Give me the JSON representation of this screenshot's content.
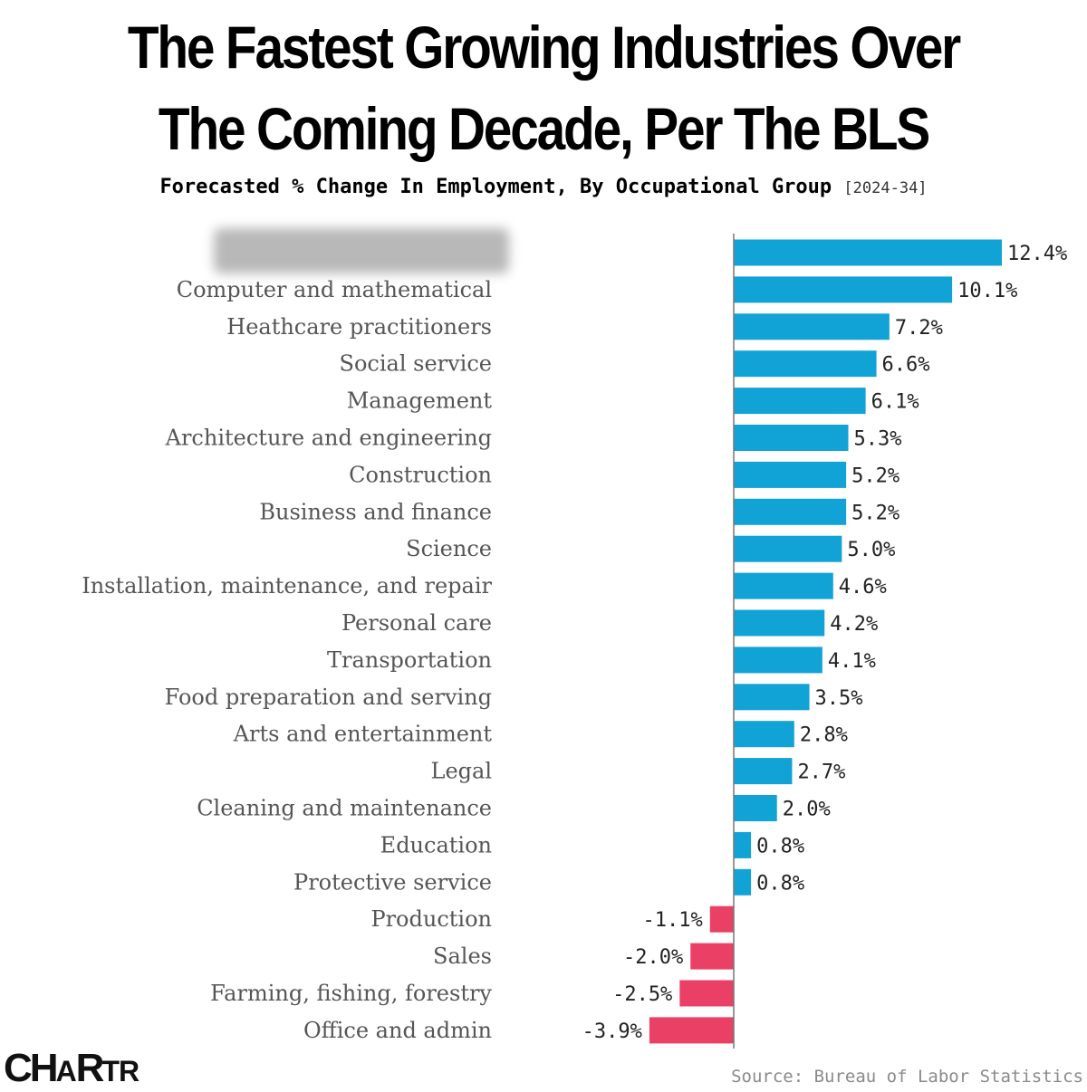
{
  "header": {
    "title_line_1": "The Fastest Growing Industries Over",
    "title_line_2": "The Coming Decade, Per The BLS",
    "subtitle": "Forecasted % Change In Employment, By Occupational Group",
    "subtitle_years": "[2024-34]"
  },
  "footer": {
    "logo_big_1": "CH",
    "logo_small_1": "A",
    "logo_big_2": "R",
    "logo_small_2": "TR",
    "source": "Source: Bureau of Labor Statistics"
  },
  "colors": {
    "positive": "#12a3d6",
    "negative": "#eb4065",
    "axis": "#777777"
  },
  "chart_data": {
    "type": "bar",
    "orientation": "horizontal",
    "title": "The Fastest Growing Industries Over The Coming Decade, Per The BLS",
    "subtitle": "Forecasted % Change In Employment, By Occupational Group [2024-34]",
    "xlabel": "",
    "ylabel": "",
    "xlim": [
      -3.9,
      12.4
    ],
    "grid": false,
    "legend": "none",
    "categories": [
      "",
      "Computer and mathematical",
      "Heathcare practitioners",
      "Social service",
      "Management",
      "Architecture and engineering",
      "Construction",
      "Business and finance",
      "Science",
      "Installation, maintenance, and repair",
      "Personal care",
      "Transportation",
      "Food preparation and serving",
      "Arts and entertainment",
      "Legal",
      "Cleaning and maintenance",
      "Education",
      "Protective service",
      "Production",
      "Sales",
      "Farming, fishing, forestry",
      "Office and admin"
    ],
    "values": [
      12.4,
      10.1,
      7.2,
      6.6,
      6.1,
      5.3,
      5.2,
      5.2,
      5.0,
      4.6,
      4.2,
      4.1,
      3.5,
      2.8,
      2.7,
      2.0,
      0.8,
      0.8,
      -1.1,
      -2.0,
      -2.5,
      -3.9
    ],
    "value_labels": [
      "12.4%",
      "10.1%",
      "7.2%",
      "6.6%",
      "6.1%",
      "5.3%",
      "5.2%",
      "5.2%",
      "5.0%",
      "4.6%",
      "4.2%",
      "4.1%",
      "3.5%",
      "2.8%",
      "2.7%",
      "2.0%",
      "0.8%",
      "0.8%",
      "-1.1%",
      "-2.0%",
      "-2.5%",
      "-3.9%"
    ]
  }
}
